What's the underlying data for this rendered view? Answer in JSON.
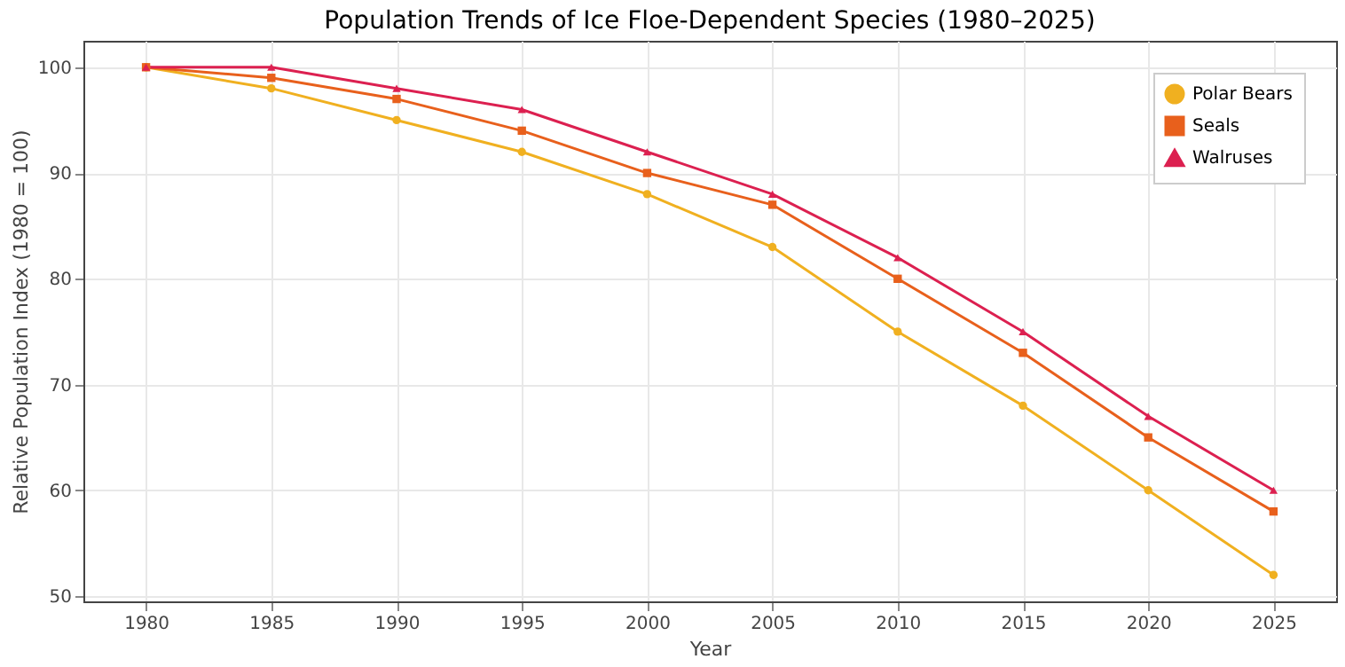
{
  "chart_data": {
    "type": "line",
    "title": "Population Trends of Ice Floe-Dependent Species (1980–2025)",
    "xlabel": "Year",
    "ylabel": "Relative Population Index (1980 = 100)",
    "x": [
      1980,
      1985,
      1990,
      1995,
      2000,
      2005,
      2010,
      2015,
      2020,
      2025
    ],
    "series": [
      {
        "name": "Polar Bears",
        "color": "#f0b020",
        "marker": "circle",
        "values": [
          100,
          98,
          95,
          92,
          88,
          83,
          75,
          68,
          60,
          52
        ]
      },
      {
        "name": "Seals",
        "color": "#e8601c",
        "marker": "square",
        "values": [
          100,
          99,
          97,
          94,
          90,
          87,
          80,
          73,
          65,
          58
        ]
      },
      {
        "name": "Walruses",
        "color": "#dc2050",
        "marker": "triangle",
        "values": [
          100,
          100,
          98,
          96,
          92,
          88,
          82,
          75,
          67,
          60
        ]
      }
    ],
    "xlim": [
      1977.5,
      2027.5
    ],
    "xticks": [
      1980,
      1985,
      1990,
      1995,
      2000,
      2005,
      2010,
      2015,
      2020,
      2025
    ],
    "ylim": [
      49.5,
      102.5
    ],
    "yticks": [
      50,
      60,
      70,
      80,
      90,
      100
    ],
    "grid": true,
    "legend": "top right",
    "line_style": "solid"
  }
}
